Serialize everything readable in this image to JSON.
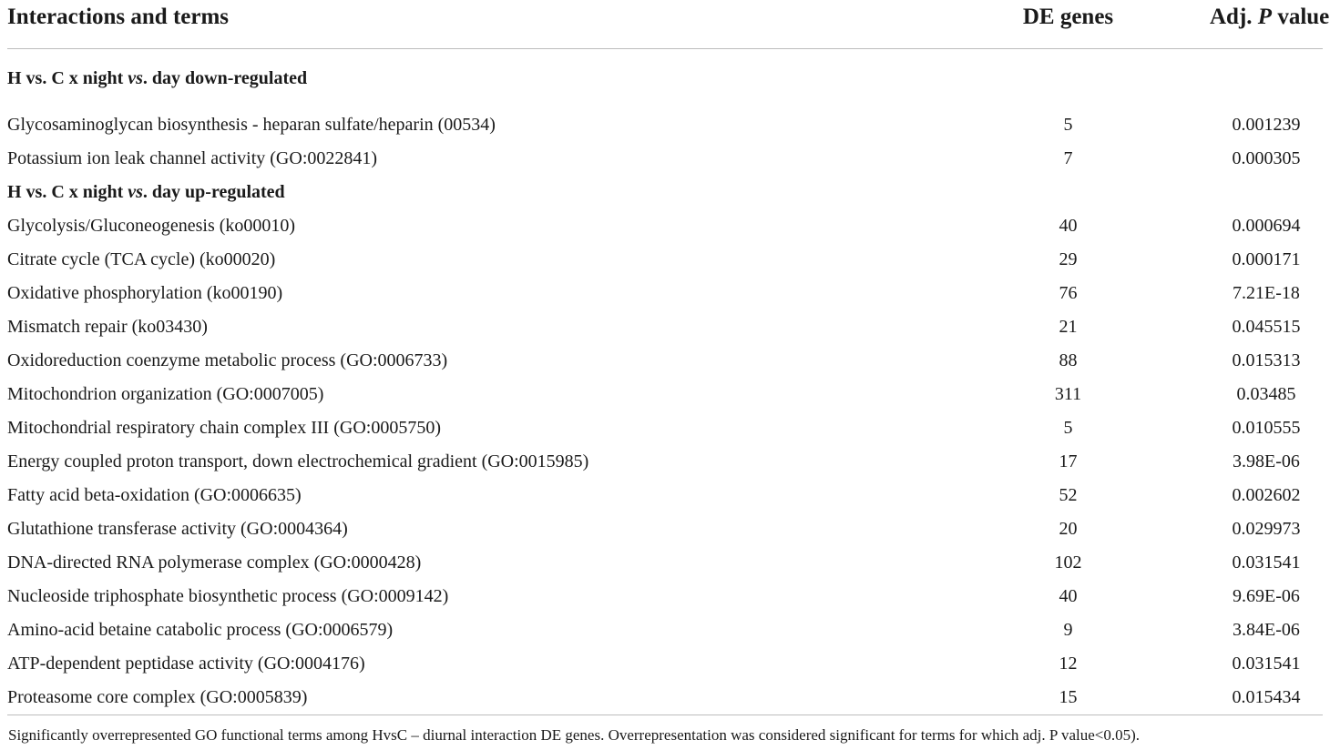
{
  "table": {
    "headers": {
      "term": "Interactions and terms",
      "de_genes": "DE genes",
      "adj_p_prefix": "Adj. ",
      "adj_p_italic": "P",
      "adj_p_suffix": " value"
    },
    "sections": [
      {
        "title_a": "H vs. C x night ",
        "title_italic": "vs",
        "title_b": ". day down-regulated",
        "rows": [
          {
            "term": "Glycosaminoglycan biosynthesis - heparan sulfate/heparin (00534)",
            "de": "5",
            "p": "0.001239"
          },
          {
            "term": "Potassium ion leak channel activity (GO:0022841)",
            "de": "7",
            "p": "0.000305"
          }
        ]
      },
      {
        "title_a": "H vs. C x night ",
        "title_italic": "vs",
        "title_b": ". day up-regulated",
        "rows": [
          {
            "term": "Glycolysis/Gluconeogenesis (ko00010)",
            "de": "40",
            "p": "0.000694"
          },
          {
            "term": "Citrate cycle (TCA cycle) (ko00020)",
            "de": "29",
            "p": "0.000171"
          },
          {
            "term": "Oxidative phosphorylation (ko00190)",
            "de": "76",
            "p": "7.21E-18"
          },
          {
            "term": "Mismatch repair (ko03430)",
            "de": "21",
            "p": "0.045515"
          },
          {
            "term": "Oxidoreduction coenzyme metabolic process (GO:0006733)",
            "de": "88",
            "p": "0.015313"
          },
          {
            "term": "Mitochondrion organization (GO:0007005)",
            "de": "311",
            "p": "0.03485"
          },
          {
            "term": "Mitochondrial respiratory chain complex III (GO:0005750)",
            "de": "5",
            "p": "0.010555"
          },
          {
            "term": "Energy coupled proton transport, down electrochemical gradient (GO:0015985)",
            "de": "17",
            "p": "3.98E-06"
          },
          {
            "term": "Fatty acid beta-oxidation (GO:0006635)",
            "de": "52",
            "p": "0.002602"
          },
          {
            "term": "Glutathione transferase activity (GO:0004364)",
            "de": "20",
            "p": "0.029973"
          },
          {
            "term": "DNA-directed RNA polymerase complex (GO:0000428)",
            "de": "102",
            "p": "0.031541"
          },
          {
            "term": "Nucleoside triphosphate biosynthetic process (GO:0009142)",
            "de": "40",
            "p": "9.69E-06"
          },
          {
            "term": "Amino-acid betaine catabolic process (GO:0006579)",
            "de": "9",
            "p": "3.84E-06"
          },
          {
            "term": "ATP-dependent peptidase activity (GO:0004176)",
            "de": "12",
            "p": "0.031541"
          },
          {
            "term": "Proteasome core complex (GO:0005839)",
            "de": "15",
            "p": "0.015434"
          }
        ]
      }
    ],
    "footnote": "Significantly overrepresented GO functional terms among HvsC – diurnal interaction DE genes. Overrepresentation was considered significant for terms for which adj. P value<0.05)."
  }
}
